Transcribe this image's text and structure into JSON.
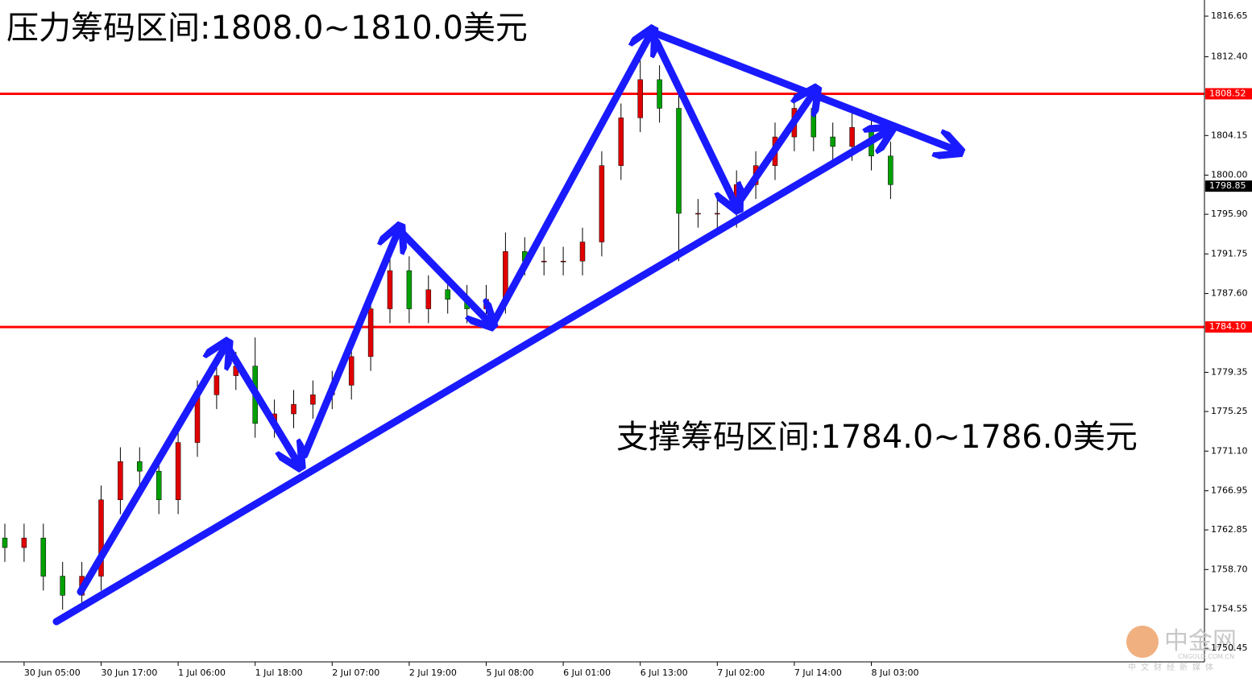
{
  "chart_data": {
    "type": "candlestick",
    "annotations": [
      "压力筹码区间:1808.0~1810.0美元",
      "支撑筹码区间:1784.0~1786.0美元"
    ],
    "watermark": [
      "中金网",
      "CNGOLD.COM.CN",
      "中文财经新媒体"
    ],
    "categories": [
      null,
      "30 Jun 05:00",
      null,
      null,
      null,
      "30 Jun 17:00",
      null,
      null,
      null,
      "1 Jul 06:00",
      null,
      null,
      null,
      "1 Jul 18:00",
      null,
      null,
      null,
      "2 Jul 07:00",
      null,
      null,
      null,
      "2 Jul 19:00",
      null,
      null,
      null,
      "5 Jul 08:00",
      null,
      null,
      null,
      "6 Jul 01:00",
      null,
      null,
      null,
      "6 Jul 13:00",
      null,
      null,
      null,
      "7 Jul 02:00",
      null,
      null,
      null,
      "7 Jul 14:00",
      null,
      null,
      null,
      "8 Jul 03:00",
      null
    ],
    "open": [
      1762,
      1761,
      1762,
      1758,
      1756,
      1758,
      1766,
      1770,
      1769,
      1766,
      1772,
      1777,
      1779,
      1780,
      1774,
      1775,
      1776,
      1777,
      1778,
      1781,
      1786,
      1790,
      1786,
      1788,
      1787,
      1786,
      1787,
      1792,
      1791,
      1791,
      1791,
      1793,
      1801,
      1806,
      1810,
      1807,
      1796,
      1796,
      1796,
      1799,
      1801,
      1804,
      1807,
      1804,
      1803,
      1805,
      1802
    ],
    "high": [
      1763.5,
      1763.5,
      1763.5,
      1759.5,
      1759.5,
      1767.5,
      1771.5,
      1771.5,
      1770.5,
      1773.5,
      1778.5,
      1780.5,
      1781.5,
      1783,
      1776.5,
      1777.5,
      1778.5,
      1779.5,
      1782.5,
      1787.5,
      1793,
      1791.5,
      1789.5,
      1789.5,
      1788.5,
      1788.5,
      1794,
      1793.5,
      1792.5,
      1792.5,
      1794.5,
      1802.5,
      1807.5,
      1812,
      1811.5,
      1808.5,
      1797.5,
      1797.5,
      1800.5,
      1802.5,
      1805.5,
      1808.5,
      1808.5,
      1805.5,
      1806.5,
      1806.5,
      1803.5
    ],
    "low": [
      1759.5,
      1759.5,
      1756.5,
      1754.5,
      1754.5,
      1756.5,
      1764.5,
      1767.5,
      1764.5,
      1764.5,
      1770.5,
      1775.5,
      1777.5,
      1772.5,
      1772.5,
      1773.5,
      1774.5,
      1775.5,
      1776.5,
      1779.5,
      1784.5,
      1784.5,
      1784.5,
      1785.5,
      1784.5,
      1784.5,
      1785.5,
      1789.5,
      1789.5,
      1789.5,
      1789.5,
      1791.5,
      1799.5,
      1804.5,
      1805.5,
      1791,
      1794.5,
      1794.5,
      1794.5,
      1797.5,
      1799.5,
      1802.5,
      1802.5,
      1801.5,
      1801.5,
      1800.5,
      1797.5
    ],
    "close": [
      1761,
      1762,
      1758,
      1756,
      1758,
      1766,
      1770,
      1769,
      1766,
      1772,
      1777,
      1779,
      1780,
      1774,
      1775,
      1776,
      1777,
      1778,
      1781,
      1786,
      1790,
      1786,
      1788,
      1787,
      1786,
      1787,
      1792,
      1791,
      1791,
      1791,
      1793,
      1801,
      1806,
      1810,
      1807,
      1796,
      1796,
      1796,
      1799,
      1801,
      1804,
      1807,
      1804,
      1803,
      1805,
      1802,
      1799
    ],
    "up_color": "#e00000",
    "down_color": "#00a000",
    "ylim": [
      1749.03,
      1818.34
    ],
    "yticks": [
      1816.65,
      {
        "value": 1812.4,
        "label": "1812.40"
      },
      1804.15,
      {
        "value": 1800,
        "label": "1800.00"
      },
      {
        "value": 1795.9,
        "label": "1795.90"
      },
      1791.75,
      {
        "value": 1787.6,
        "label": "1787.60"
      },
      1779.35,
      1775.25,
      {
        "value": 1771.1,
        "label": "1771.10"
      },
      1766.95,
      1762.85,
      {
        "value": 1758.7,
        "label": "1758.70"
      },
      1754.55,
      1750.45
    ],
    "price_levels": [
      {
        "value": 1808.52,
        "color": "#ff0000",
        "line": true
      },
      {
        "value": 1784.1,
        "label": "1784.10",
        "color": "#ff0000",
        "line": true
      },
      {
        "value": 1798.85,
        "color": "#000000",
        "line": false
      }
    ]
  }
}
